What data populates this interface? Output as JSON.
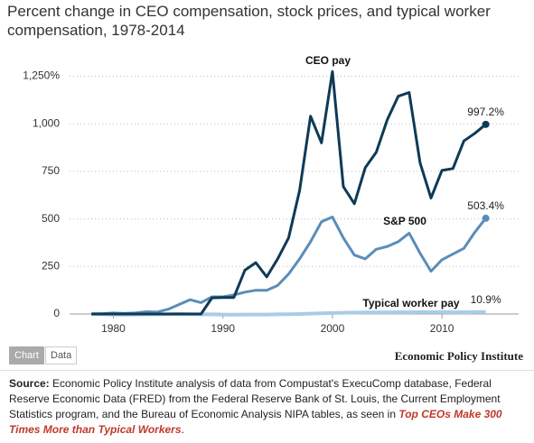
{
  "chart_data": {
    "type": "line",
    "title": "Percent change in CEO compensation, stock prices, and typical worker compensation, 1978-2014",
    "x": [
      1978,
      1979,
      1980,
      1981,
      1982,
      1983,
      1984,
      1985,
      1986,
      1987,
      1988,
      1989,
      1990,
      1991,
      1992,
      1993,
      1994,
      1995,
      1996,
      1997,
      1998,
      1999,
      2000,
      2001,
      2002,
      2003,
      2004,
      2005,
      2006,
      2007,
      2008,
      2009,
      2010,
      2011,
      2012,
      2013,
      2014
    ],
    "series": [
      {
        "name": "CEO pay",
        "color": "#0e3a56",
        "values": [
          0,
          0,
          0,
          0,
          0,
          0,
          0,
          0,
          0,
          0,
          0,
          85,
          87,
          87,
          230,
          270,
          195,
          290,
          400,
          650,
          1040,
          900,
          1275,
          670,
          580,
          770,
          850,
          1020,
          1145,
          1165,
          795,
          610,
          755,
          765,
          910,
          950,
          997.2
        ],
        "value_labels": [
          null,
          null,
          null,
          null,
          null,
          null,
          null,
          null,
          null,
          null,
          null,
          null,
          null,
          null,
          null,
          null,
          null,
          null,
          null,
          null,
          null,
          null,
          null,
          null,
          null,
          null,
          null,
          null,
          null,
          null,
          null,
          null,
          null,
          null,
          null,
          null,
          "997.2%"
        ]
      },
      {
        "name": "S&P 500",
        "color": "#5b8db8",
        "values": [
          0,
          2,
          5,
          3,
          5,
          12,
          10,
          25,
          50,
          75,
          60,
          90,
          90,
          100,
          115,
          125,
          125,
          150,
          210,
          290,
          380,
          485,
          510,
          400,
          310,
          290,
          340,
          355,
          380,
          425,
          320,
          225,
          285,
          315,
          345,
          430,
          503.4
        ],
        "value_labels": [
          null,
          null,
          null,
          null,
          null,
          null,
          null,
          null,
          null,
          null,
          null,
          null,
          null,
          null,
          null,
          null,
          null,
          null,
          null,
          null,
          null,
          null,
          null,
          null,
          null,
          null,
          null,
          null,
          null,
          null,
          null,
          null,
          null,
          null,
          null,
          null,
          "503.4%"
        ]
      },
      {
        "name": "Typical worker pay",
        "color": "#a9cce6",
        "values": [
          0,
          -1,
          -3,
          -4,
          -3,
          -2,
          -2,
          -1,
          0,
          -1,
          -2,
          -2,
          -3,
          -4,
          -3,
          -3,
          -3,
          -2,
          -1,
          0,
          2,
          4,
          5,
          6,
          7,
          8,
          8,
          8,
          9,
          9,
          10,
          10,
          10,
          9,
          9,
          10,
          10.9
        ],
        "value_labels": [
          null,
          null,
          null,
          null,
          null,
          null,
          null,
          null,
          null,
          null,
          null,
          null,
          null,
          null,
          null,
          null,
          null,
          null,
          null,
          null,
          null,
          null,
          null,
          null,
          null,
          null,
          null,
          null,
          null,
          null,
          null,
          null,
          null,
          null,
          null,
          null,
          "10.9%"
        ]
      }
    ],
    "xlim": [
      1976,
      2017
    ],
    "xticks": [
      1980,
      1990,
      2000,
      2010
    ],
    "ylim": [
      0,
      1300
    ],
    "yticks": [
      0,
      250,
      500,
      750,
      {
        "value": 1000,
        "label": "1,000"
      },
      {
        "value": 1250,
        "label": "1,250%"
      }
    ],
    "grid": true
  },
  "tabs": [
    "Chart",
    "Data"
  ],
  "credit": "Economic Policy Institute",
  "source": {
    "label": "Source:",
    "text": "Economic Policy Institute analysis of data from Compustat's ExecuComp database, Federal Reserve Economic Data (FRED) from the Federal Reserve Bank of St. Louis, the Current Employment Statistics program, and the Bureau of Economic Analysis NIPA tables, as seen in",
    "link": "Top CEOs Make 300 Times More than Typical Workers",
    "end": "."
  }
}
